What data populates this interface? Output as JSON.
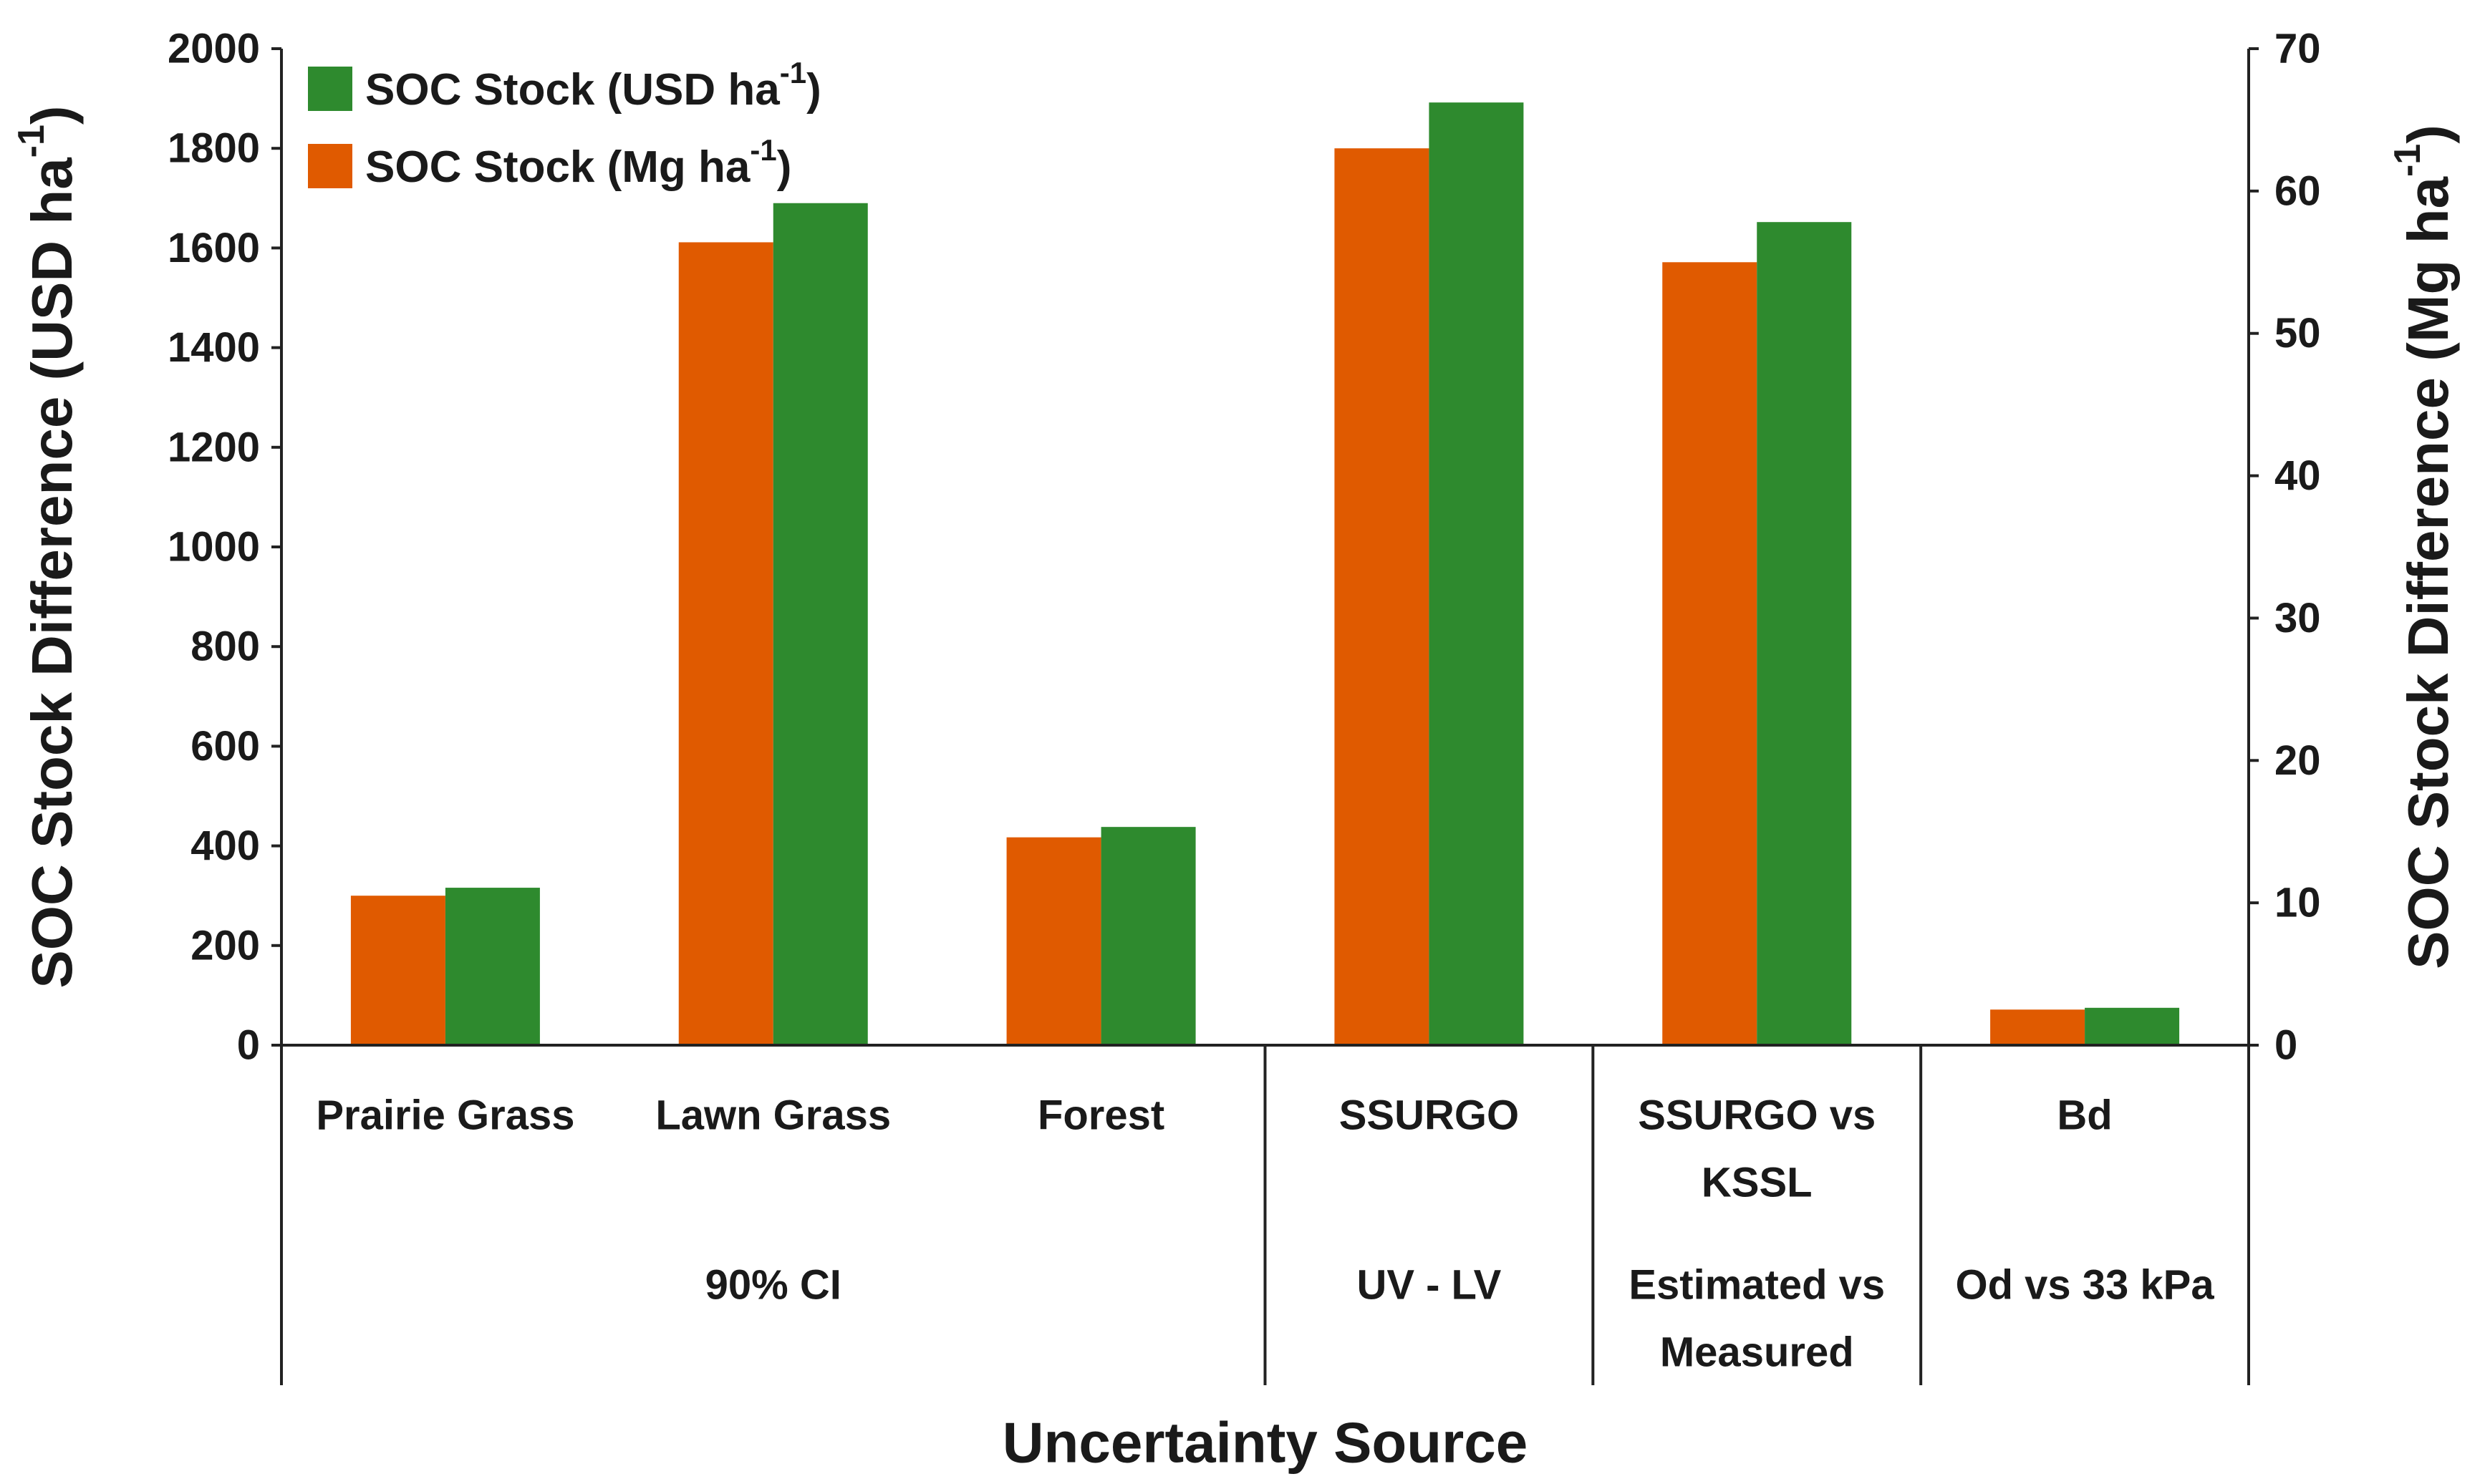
{
  "chart_data": {
    "type": "bar",
    "title": "",
    "xlabel": "Uncertainty Source",
    "ylabel_left": {
      "main": "SOC Stock Difference (USD ha",
      "sup": "-1",
      "close": ")"
    },
    "ylabel_right": {
      "main": "SOC Stock Difference (Mg ha",
      "sup": "-1",
      "close": ")"
    },
    "ylim_left": [
      0,
      2000
    ],
    "ylim_right": [
      0,
      70
    ],
    "yticks_left": [
      "0",
      "200",
      "400",
      "600",
      "800",
      "1000",
      "1200",
      "1400",
      "1600",
      "1800",
      "2000"
    ],
    "yticks_right": [
      "0",
      "10",
      "20",
      "30",
      "40",
      "50",
      "60",
      "70"
    ],
    "categories": [
      {
        "lines": [
          "Prairie Grass"
        ]
      },
      {
        "lines": [
          "Lawn Grass"
        ]
      },
      {
        "lines": [
          "Forest"
        ]
      },
      {
        "lines": [
          "SSURGO"
        ]
      },
      {
        "lines": [
          "SSURGO vs",
          "KSSL"
        ]
      },
      {
        "lines": [
          "Bd"
        ]
      }
    ],
    "groups": [
      {
        "lines": [
          "90% CI"
        ],
        "span": [
          0,
          2
        ]
      },
      {
        "lines": [
          "UV - LV"
        ],
        "span": [
          3,
          3
        ]
      },
      {
        "lines": [
          "Estimated vs",
          "Measured"
        ],
        "span": [
          4,
          4
        ]
      },
      {
        "lines": [
          "Od vs 33 kPa"
        ],
        "span": [
          5,
          5
        ]
      }
    ],
    "series": [
      {
        "name": "SOC Stock (Mg ha-1)",
        "legend": {
          "main": "SOC Stock (Mg ha",
          "sup": "-1",
          "close": ")"
        },
        "axis": "right",
        "color": "#E05A00",
        "values": [
          10.5,
          56.4,
          14.6,
          63.0,
          55.0,
          2.5
        ]
      },
      {
        "name": "SOC Stock (USD ha-1)",
        "legend": {
          "main": "SOC Stock (USD ha",
          "sup": "-1",
          "close": ")"
        },
        "axis": "left",
        "color": "#2E8A2E",
        "values": [
          316,
          1690,
          438,
          1892,
          1652,
          75
        ]
      }
    ],
    "legend_order": [
      1,
      0
    ],
    "legend_position": "top-left",
    "grid": false
  }
}
